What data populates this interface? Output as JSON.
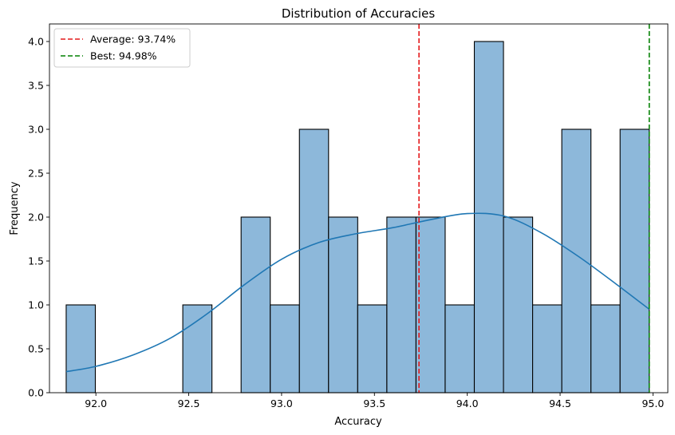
{
  "chart_data": {
    "type": "bar",
    "subtype": "histogram",
    "title": "Distribution of Accuracies",
    "xlabel": "Accuracy",
    "ylabel": "Frequency",
    "xlim": [
      91.75,
      95.08
    ],
    "ylim": [
      0,
      4.2
    ],
    "xticks": [
      "92.0",
      "92.5",
      "93.0",
      "93.5",
      "94.0",
      "94.5",
      "95.0"
    ],
    "xtick_values": [
      92.0,
      92.5,
      93.0,
      93.5,
      94.0,
      94.5,
      95.0
    ],
    "yticks": [
      "0.0",
      "0.5",
      "1.0",
      "1.5",
      "2.0",
      "2.5",
      "3.0",
      "3.5",
      "4.0"
    ],
    "ytick_values": [
      0,
      0.5,
      1.0,
      1.5,
      2.0,
      2.5,
      3.0,
      3.5,
      4.0
    ],
    "bin_start": 91.84,
    "bin_end": 94.98,
    "bin_counts": [
      1,
      0,
      0,
      0,
      1,
      0,
      2,
      1,
      3,
      2,
      1,
      2,
      2,
      1,
      4,
      2,
      1,
      3,
      1,
      3
    ],
    "bar_color": "#8db8da",
    "bar_edge_color": "#000000",
    "kde": {
      "color": "#1f77b4",
      "x": [
        91.84,
        92.0,
        92.2,
        92.4,
        92.6,
        92.8,
        93.0,
        93.2,
        93.4,
        93.6,
        93.8,
        94.0,
        94.2,
        94.4,
        94.6,
        94.8,
        94.98
      ],
      "y": [
        0.24,
        0.3,
        0.43,
        0.62,
        0.9,
        1.23,
        1.52,
        1.71,
        1.81,
        1.88,
        1.97,
        2.04,
        2.01,
        1.82,
        1.55,
        1.24,
        0.95
      ]
    },
    "reference_lines": [
      {
        "name": "Average: 93.74%",
        "x": 93.74,
        "color": "#e41a1c"
      },
      {
        "name": "Best: 94.98%",
        "x": 94.98,
        "color": "#008000"
      }
    ],
    "legend_position": "top-left",
    "grid": false
  }
}
